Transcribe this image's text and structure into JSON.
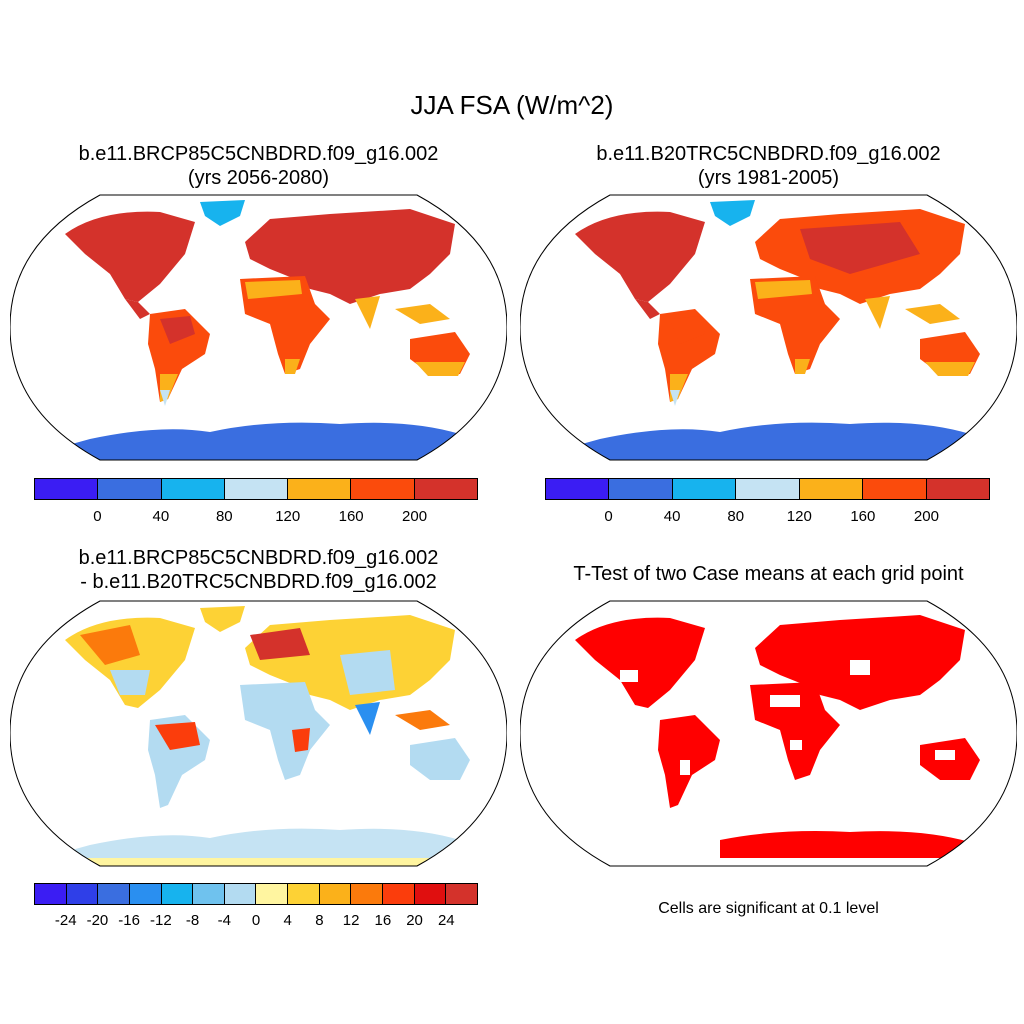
{
  "title": "JJA FSA (W/m^2)",
  "panels": [
    {
      "line1": "b.e11.BRCP85C5CNBDRD.f09_g16.002",
      "line2": "(yrs 2056-2080)"
    },
    {
      "line1": "b.e11.B20TRC5CNBDRD.f09_g16.002",
      "line2": "(yrs 1981-2005)"
    },
    {
      "line1": "b.e11.BRCP85C5CNBDRD.f09_g16.002",
      "line2": "- b.e11.B20TRC5CNBDRD.f09_g16.002"
    },
    {
      "line1": "T-Test of two Case means at each grid point",
      "line2": ""
    }
  ],
  "colorbar_abs": {
    "colors": [
      "#3b1df3",
      "#3a6ee0",
      "#17b3ee",
      "#c5e3f3",
      "#fbb11a",
      "#fb4b0c",
      "#d4322b"
    ],
    "labels": [
      "0",
      "40",
      "80",
      "120",
      "160",
      "200"
    ]
  },
  "colorbar_diff": {
    "colors": [
      "#3b1df3",
      "#2f3fe8",
      "#3a6ee0",
      "#2a8ff0",
      "#17b3ee",
      "#6fc2ee",
      "#b3dbf1",
      "#fff5a0",
      "#fdd235",
      "#fbb11a",
      "#fb7a0c",
      "#fb3d0c",
      "#e00f0f",
      "#d4322b"
    ],
    "labels": [
      "-24",
      "-20",
      "-16",
      "-12",
      "-8",
      "-4",
      "0",
      "4",
      "8",
      "12",
      "16",
      "20",
      "24"
    ]
  },
  "significance_note": "Cells are significant at 0.1 level",
  "colors": {
    "sig_red": "#ff0000",
    "antarctica_abs": "#3a6ee0",
    "greenland_abs": "#17b3ee",
    "antarctica_diff": "#c5e3f3",
    "antarctica_diff_edge": "#fff5a0",
    "land_diff_base": "#b3dbf1"
  }
}
